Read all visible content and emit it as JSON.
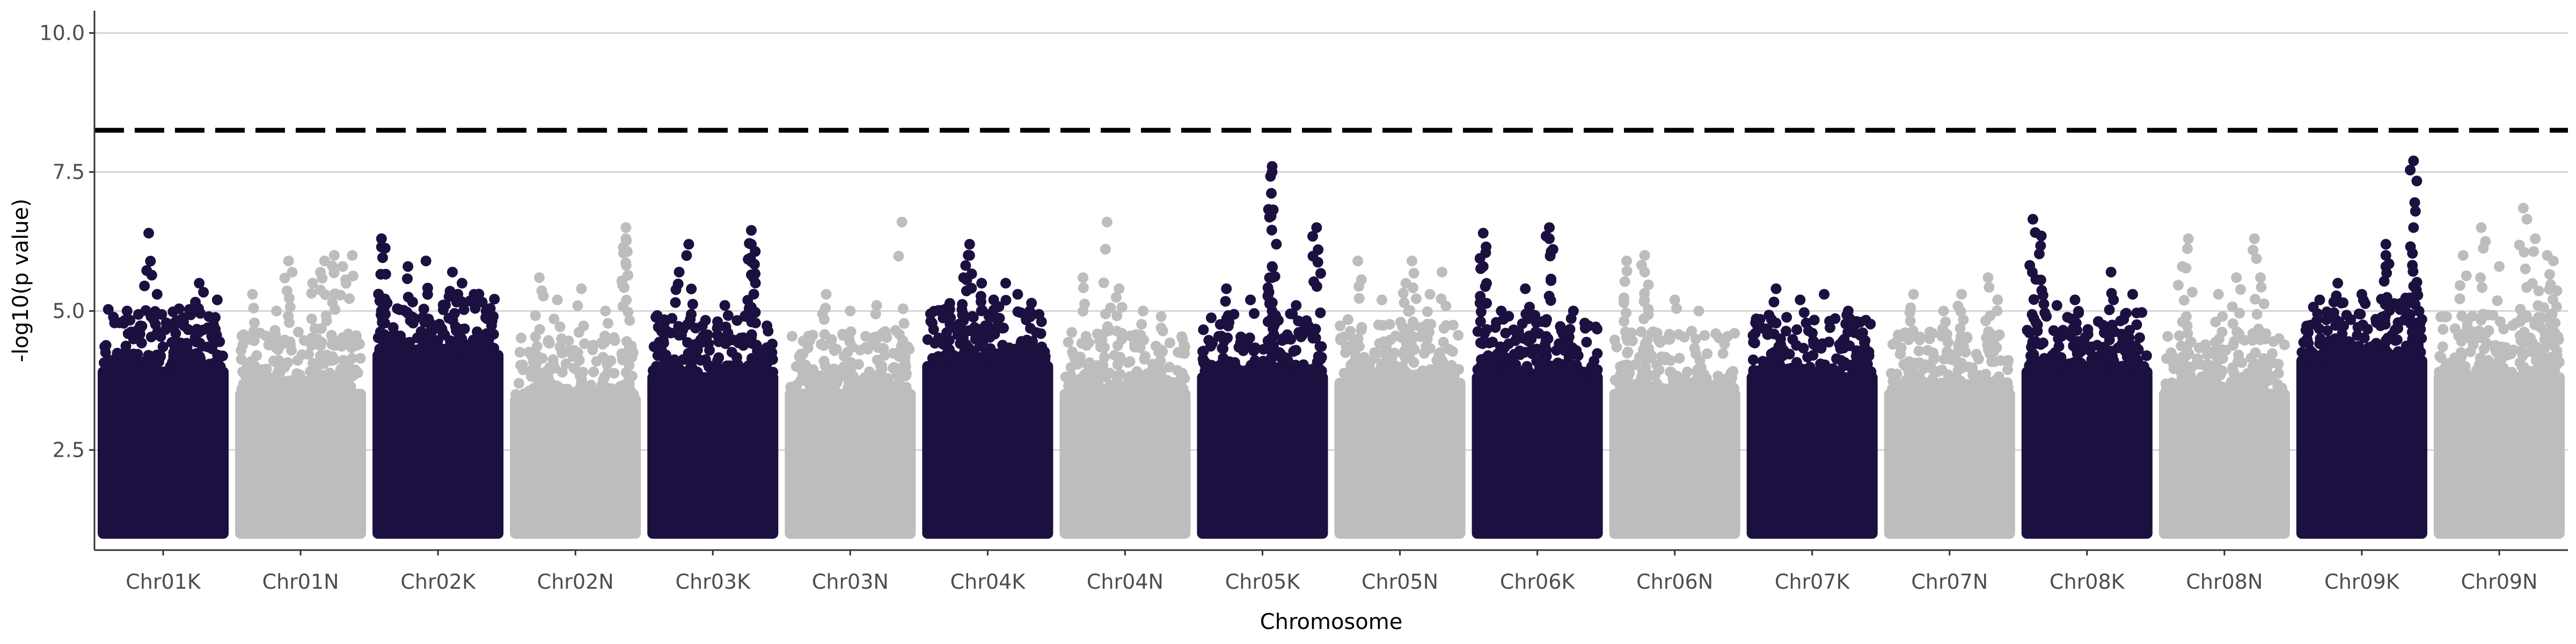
{
  "chart_data": {
    "type": "scatter",
    "title": "",
    "xlabel": "Chromosome",
    "ylabel": "-log10(p value)",
    "ylim": [
      0.7,
      10.4
    ],
    "yticks": [
      2.5,
      5.0,
      7.5,
      10.0
    ],
    "ytick_labels": [
      "2.5",
      "5.0",
      "7.5",
      "10.0"
    ],
    "grid": "horizontal major gridlines",
    "threshold": 8.25,
    "threshold_style": "dashed",
    "point_floor": 1.0,
    "colors": {
      "dark": "#1c1040",
      "light": "#bdbdbd",
      "threshold": "#000000",
      "grid": "#d6d6d6",
      "axis": "#333333"
    },
    "categories": [
      "Chr01K",
      "Chr01N",
      "Chr02K",
      "Chr02N",
      "Chr03K",
      "Chr03N",
      "Chr04K",
      "Chr04N",
      "Chr05K",
      "Chr05N",
      "Chr06K",
      "Chr06N",
      "Chr07K",
      "Chr07N",
      "Chr08K",
      "Chr08N",
      "Chr09K",
      "Chr09N"
    ],
    "series": [
      {
        "chromosome": "Chr01K",
        "color": "dark",
        "dense_top": 4.0,
        "peaks": [
          [
            0.38,
            6.4
          ],
          [
            0.8,
            5.5
          ],
          [
            0.45,
            5.3
          ],
          [
            0.95,
            5.2
          ],
          [
            0.2,
            5.0
          ],
          [
            0.6,
            4.8
          ],
          [
            0.88,
            4.9
          ]
        ]
      },
      {
        "chromosome": "Chr01N",
        "color": "light",
        "dense_top": 3.6,
        "peaks": [
          [
            0.4,
            5.9
          ],
          [
            0.7,
            5.9
          ],
          [
            0.78,
            6.0
          ],
          [
            0.93,
            6.0
          ],
          [
            0.85,
            5.8
          ],
          [
            0.6,
            5.5
          ],
          [
            0.1,
            5.3
          ],
          [
            0.3,
            5.0
          ]
        ]
      },
      {
        "chromosome": "Chr02K",
        "color": "dark",
        "dense_top": 4.3,
        "peaks": [
          [
            0.03,
            6.3
          ],
          [
            0.03,
            6.15
          ],
          [
            0.25,
            5.8
          ],
          [
            0.4,
            5.9
          ],
          [
            0.62,
            5.7
          ],
          [
            0.7,
            5.5
          ],
          [
            0.8,
            5.3
          ],
          [
            0.9,
            5.0
          ]
        ]
      },
      {
        "chromosome": "Chr02N",
        "color": "light",
        "dense_top": 3.5,
        "peaks": [
          [
            0.92,
            6.5
          ],
          [
            0.92,
            6.3
          ],
          [
            0.2,
            5.6
          ],
          [
            0.35,
            5.2
          ],
          [
            0.55,
            5.4
          ],
          [
            0.75,
            5.0
          ]
        ]
      },
      {
        "chromosome": "Chr03K",
        "color": "dark",
        "dense_top": 3.9,
        "peaks": [
          [
            0.22,
            5.7
          ],
          [
            0.3,
            6.2
          ],
          [
            0.82,
            6.45
          ],
          [
            0.82,
            6.2
          ],
          [
            0.82,
            5.9
          ],
          [
            0.6,
            5.1
          ],
          [
            0.1,
            4.8
          ]
        ]
      },
      {
        "chromosome": "Chr03N",
        "color": "light",
        "dense_top": 3.6,
        "peaks": [
          [
            0.93,
            6.6
          ],
          [
            0.3,
            5.3
          ],
          [
            0.5,
            5.0
          ],
          [
            0.72,
            5.1
          ]
        ]
      },
      {
        "chromosome": "Chr04K",
        "color": "dark",
        "dense_top": 4.1,
        "peaks": [
          [
            0.35,
            6.2
          ],
          [
            0.35,
            6.0
          ],
          [
            0.3,
            5.6
          ],
          [
            0.45,
            5.5
          ],
          [
            0.65,
            5.5
          ],
          [
            0.75,
            5.3
          ],
          [
            0.55,
            5.2
          ],
          [
            0.85,
            5.0
          ]
        ]
      },
      {
        "chromosome": "Chr04N",
        "color": "light",
        "dense_top": 3.6,
        "peaks": [
          [
            0.35,
            6.6
          ],
          [
            0.15,
            5.6
          ],
          [
            0.45,
            5.4
          ],
          [
            0.65,
            5.0
          ],
          [
            0.8,
            4.9
          ]
        ]
      },
      {
        "chromosome": "Chr05K",
        "color": "dark",
        "dense_top": 3.9,
        "peaks": [
          [
            0.58,
            7.6
          ],
          [
            0.58,
            7.5
          ],
          [
            0.95,
            6.5
          ],
          [
            0.58,
            5.8
          ],
          [
            0.58,
            5.6
          ],
          [
            0.2,
            5.4
          ],
          [
            0.4,
            5.2
          ],
          [
            0.78,
            5.1
          ]
        ]
      },
      {
        "chromosome": "Chr05N",
        "color": "light",
        "dense_top": 3.8,
        "peaks": [
          [
            0.15,
            5.9
          ],
          [
            0.6,
            5.9
          ],
          [
            0.85,
            5.7
          ],
          [
            0.55,
            5.5
          ],
          [
            0.35,
            5.2
          ],
          [
            0.75,
            5.3
          ]
        ]
      },
      {
        "chromosome": "Chr06K",
        "color": "dark",
        "dense_top": 3.9,
        "peaks": [
          [
            0.05,
            6.4
          ],
          [
            0.05,
            5.8
          ],
          [
            0.6,
            6.5
          ],
          [
            0.6,
            6.3
          ],
          [
            0.4,
            5.4
          ],
          [
            0.8,
            5.0
          ],
          [
            0.2,
            5.0
          ]
        ]
      },
      {
        "chromosome": "Chr06N",
        "color": "light",
        "dense_top": 3.6,
        "peaks": [
          [
            0.1,
            5.9
          ],
          [
            0.25,
            6.0
          ],
          [
            0.25,
            5.7
          ],
          [
            0.5,
            5.2
          ],
          [
            0.7,
            5.0
          ]
        ]
      },
      {
        "chromosome": "Chr07K",
        "color": "dark",
        "dense_top": 3.9,
        "peaks": [
          [
            0.2,
            5.4
          ],
          [
            0.4,
            5.2
          ],
          [
            0.6,
            5.3
          ],
          [
            0.8,
            5.0
          ],
          [
            0.9,
            4.8
          ]
        ]
      },
      {
        "chromosome": "Chr07N",
        "color": "light",
        "dense_top": 3.6,
        "peaks": [
          [
            0.2,
            5.3
          ],
          [
            0.45,
            5.0
          ],
          [
            0.6,
            5.3
          ],
          [
            0.82,
            5.6
          ],
          [
            0.9,
            5.2
          ]
        ]
      },
      {
        "chromosome": "Chr08K",
        "color": "dark",
        "dense_top": 4.0,
        "peaks": [
          [
            0.05,
            6.65
          ],
          [
            0.12,
            6.35
          ],
          [
            0.7,
            5.7
          ],
          [
            0.88,
            5.3
          ],
          [
            0.4,
            5.2
          ],
          [
            0.25,
            5.1
          ]
        ]
      },
      {
        "chromosome": "Chr08N",
        "color": "light",
        "dense_top": 3.6,
        "peaks": [
          [
            0.2,
            6.3
          ],
          [
            0.75,
            6.3
          ],
          [
            0.15,
            5.8
          ],
          [
            0.8,
            5.6
          ],
          [
            0.6,
            5.6
          ],
          [
            0.45,
            5.3
          ]
        ]
      },
      {
        "chromosome": "Chr09K",
        "color": "dark",
        "dense_top": 4.2,
        "peaks": [
          [
            0.93,
            7.7
          ],
          [
            0.93,
            6.5
          ],
          [
            0.7,
            6.2
          ],
          [
            0.7,
            6.0
          ],
          [
            0.7,
            5.8
          ],
          [
            0.3,
            5.5
          ],
          [
            0.5,
            5.3
          ],
          [
            0.15,
            5.2
          ]
        ]
      },
      {
        "chromosome": "Chr09N",
        "color": "light",
        "dense_top": 3.9,
        "peaks": [
          [
            0.7,
            6.85
          ],
          [
            0.8,
            6.3
          ],
          [
            0.35,
            6.5
          ],
          [
            0.2,
            6.0
          ],
          [
            0.5,
            5.8
          ],
          [
            0.9,
            6.0
          ],
          [
            0.95,
            5.9
          ]
        ]
      }
    ]
  }
}
